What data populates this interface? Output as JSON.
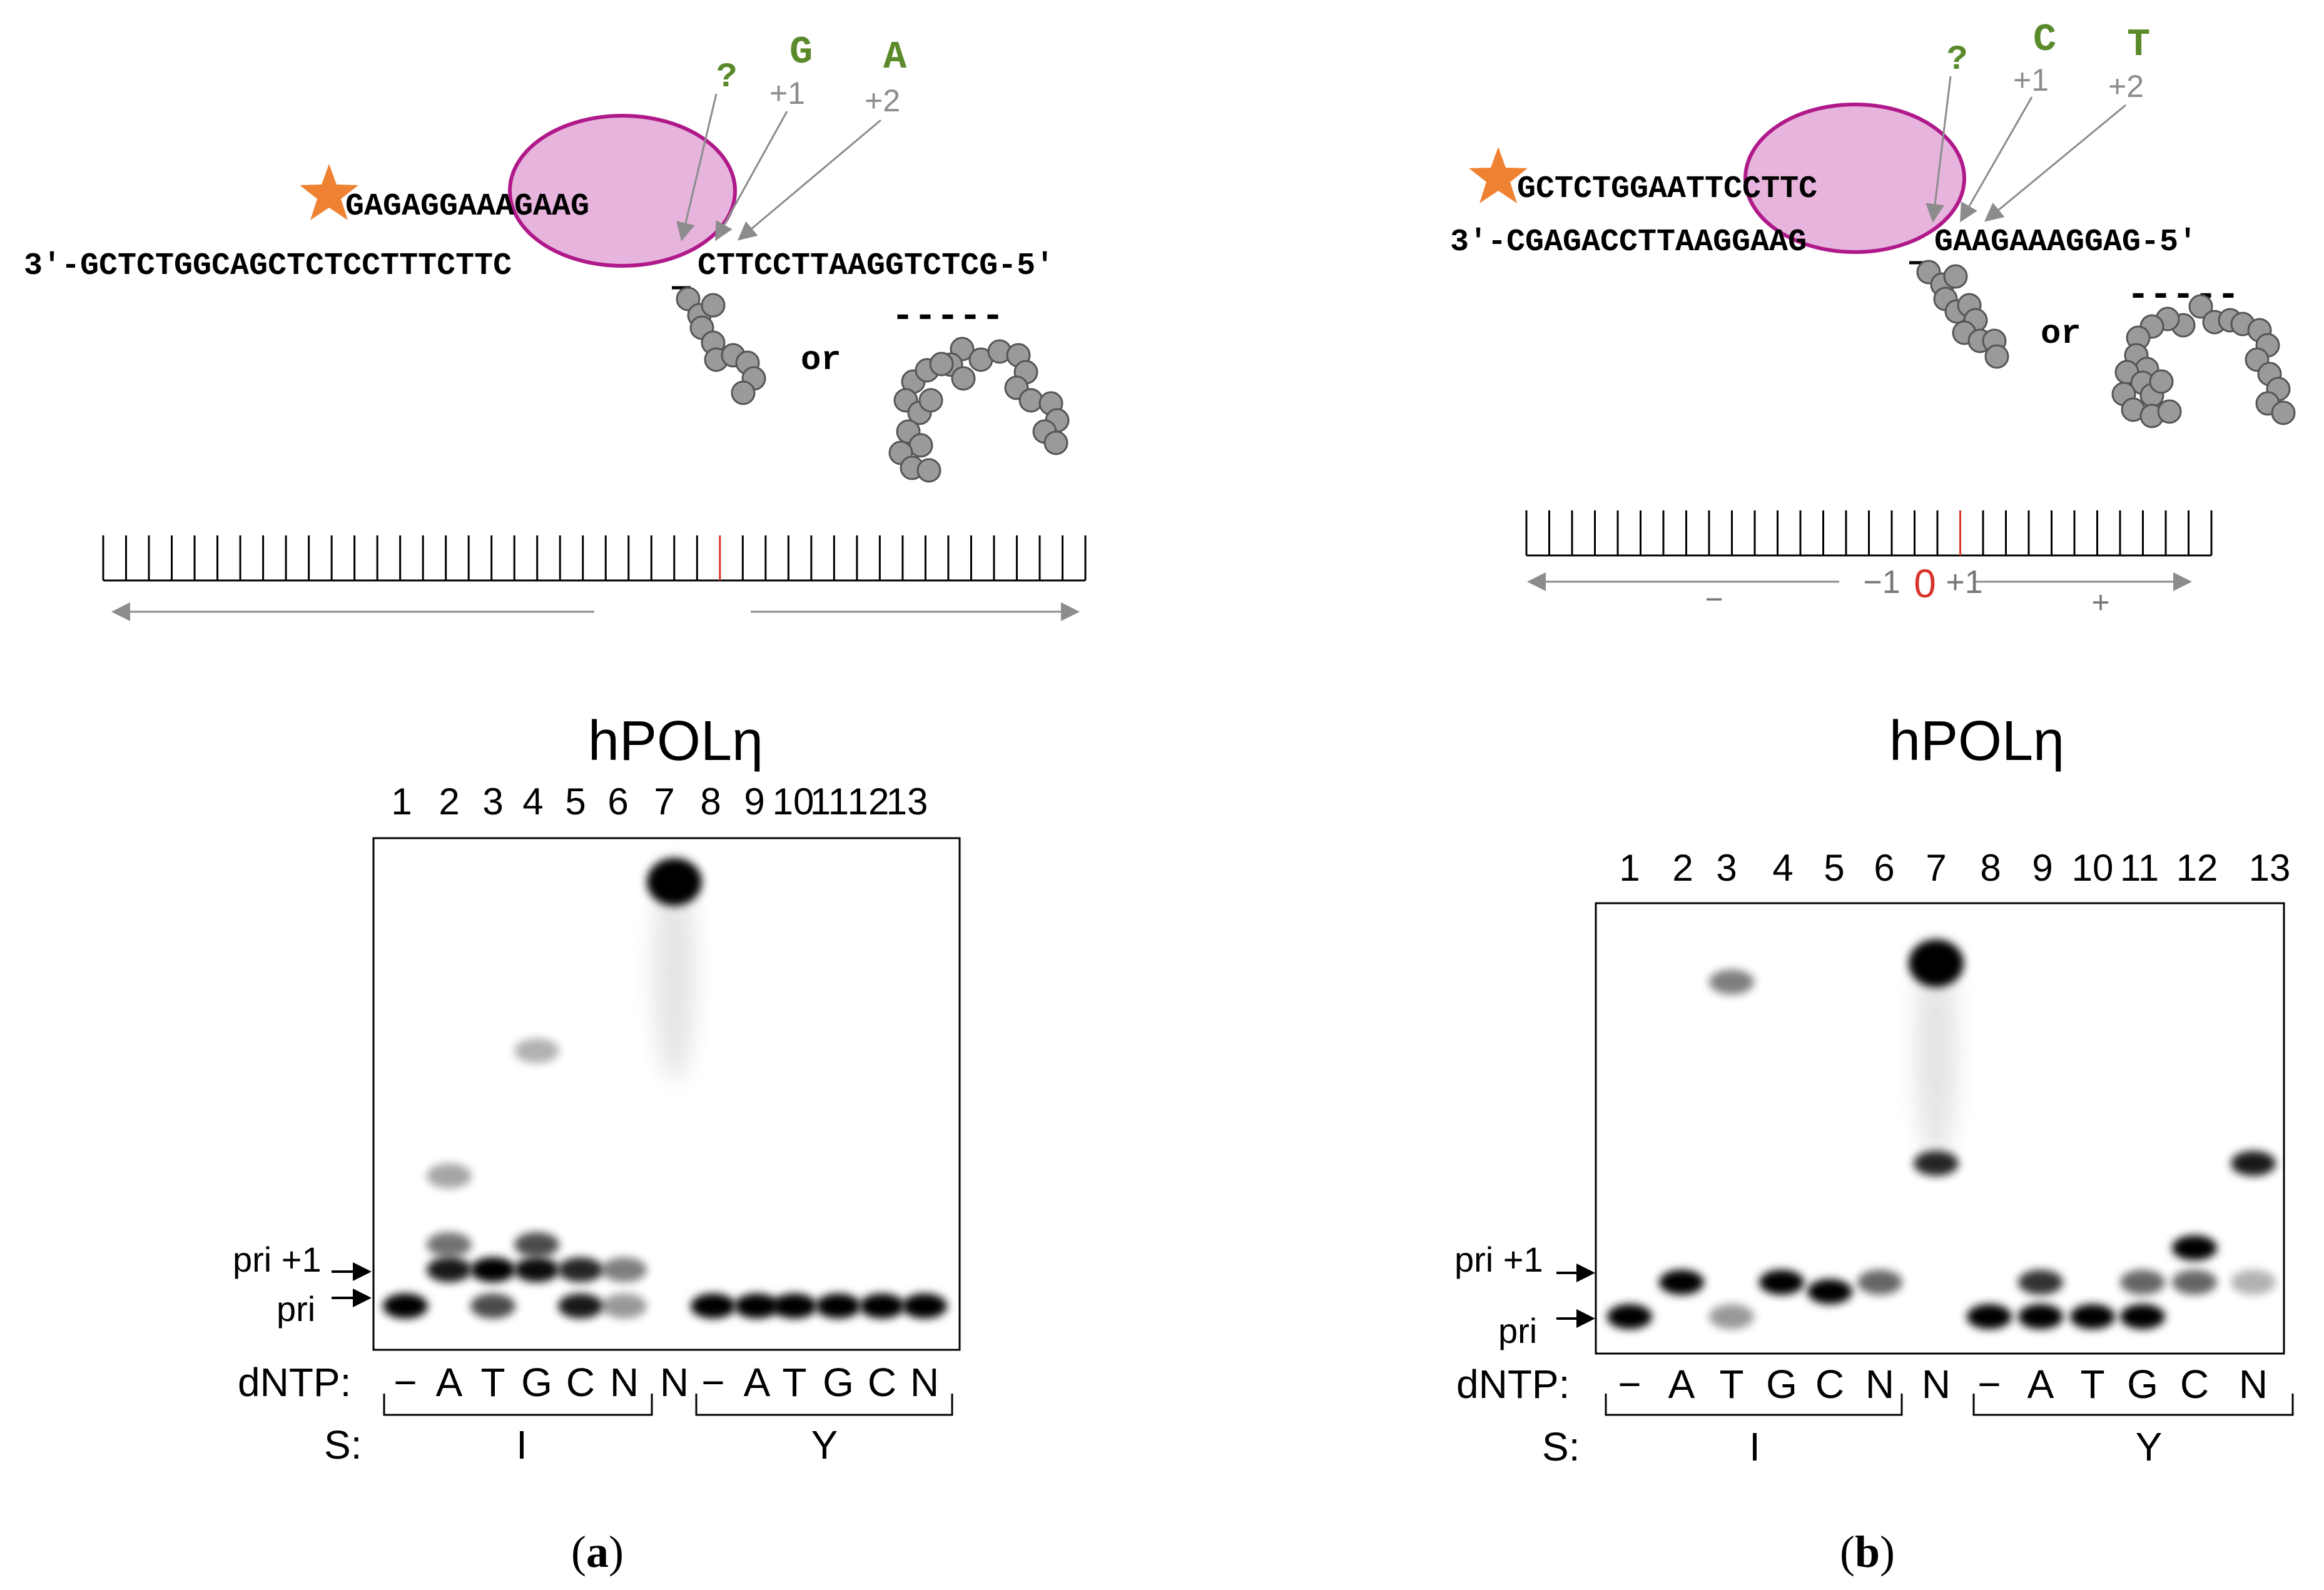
{
  "colors": {
    "accent_green": "#5a8a2a",
    "offset_gray": "#8c8c8c",
    "polymerase_fill": "#e6b4dc",
    "polymerase_stroke": "#b0198a",
    "star": "#ef8232",
    "zero_red": "#d9342b",
    "bead": "#9a9a9a",
    "band": "#000000"
  },
  "panels": [
    {
      "id": "a",
      "caption_letter": "a",
      "unknown_base": "?",
      "next_bases": [
        "G",
        "A"
      ],
      "offsets": [
        "+1",
        "+2"
      ],
      "primer": "GAGAGGAAAGAAG",
      "template_left": "3′-GCTCTGGCAGCTCTCCTTTCTTC",
      "template_right": "CTTCCTTAAGGTCTCG-5′",
      "or_label": "or",
      "gel_title": "hPOLη",
      "lane_numbers": [
        "1",
        "2",
        "3",
        "4",
        "5",
        "6",
        "7",
        "8",
        "9",
        "10",
        "11",
        "12",
        "13"
      ],
      "dntp_label": "dNTP:",
      "dntp_values": [
        "−",
        "A",
        "T",
        "G",
        "C",
        "N",
        "N",
        "−",
        "A",
        "T",
        "G",
        "C",
        "N"
      ],
      "s_label": "S:",
      "s_groups": [
        "I",
        "Y"
      ],
      "band_labels": [
        "pri +1",
        "pri"
      ],
      "bands": [
        {
          "lane": 1,
          "row": "pri",
          "i": 1.0
        },
        {
          "lane": 2,
          "row": "pri+1",
          "i": 0.9
        },
        {
          "lane": 2,
          "row": "upper",
          "i": 0.55
        },
        {
          "lane": 2,
          "row": "upper2",
          "i": 0.35
        },
        {
          "lane": 3,
          "row": "pri+1",
          "i": 1.0
        },
        {
          "lane": 3,
          "row": "pri",
          "i": 0.7
        },
        {
          "lane": 4,
          "row": "pri+1",
          "i": 0.95
        },
        {
          "lane": 4,
          "row": "upper",
          "i": 0.7
        },
        {
          "lane": 4,
          "row": "upper3",
          "i": 0.3
        },
        {
          "lane": 5,
          "row": "pri+1",
          "i": 0.85
        },
        {
          "lane": 5,
          "row": "pri",
          "i": 0.9
        },
        {
          "lane": 6,
          "row": "pri+1",
          "i": 0.5
        },
        {
          "lane": 6,
          "row": "pri",
          "i": 0.4
        },
        {
          "lane": 7,
          "row": "full",
          "i": 1.0
        },
        {
          "lane": 8,
          "row": "pri",
          "i": 1.0
        },
        {
          "lane": 9,
          "row": "pri",
          "i": 1.0
        },
        {
          "lane": 10,
          "row": "pri",
          "i": 1.0
        },
        {
          "lane": 11,
          "row": "pri",
          "i": 1.0
        },
        {
          "lane": 12,
          "row": "pri",
          "i": 1.0
        },
        {
          "lane": 13,
          "row": "pri",
          "i": 1.0
        }
      ]
    },
    {
      "id": "b",
      "caption_letter": "b",
      "unknown_base": "?",
      "next_bases": [
        "C",
        "T"
      ],
      "offsets": [
        "+1",
        "+2"
      ],
      "primer": "GCTCTGGAATTCCTTC",
      "template_left": "3′-CGAGACCTTAAGGAAG",
      "template_right": "GAAGAAAGGAG-5′",
      "or_label": "or",
      "ruler_labels": {
        "minus": "−",
        "left": "−1",
        "zero": "0",
        "right": "+1",
        "plus": "+"
      },
      "gel_title": "hPOLη",
      "lane_numbers": [
        "1",
        "2",
        "3",
        "4",
        "5",
        "6",
        "7",
        "8",
        "9",
        "10",
        "11",
        "12",
        "13"
      ],
      "dntp_label": "dNTP:",
      "dntp_values": [
        "−",
        "A",
        "T",
        "G",
        "C",
        "N",
        "N",
        "−",
        "A",
        "T",
        "G",
        "C",
        "N"
      ],
      "s_label": "S:",
      "s_groups": [
        "I",
        "Y"
      ],
      "band_labels": [
        "pri +1",
        "pri"
      ],
      "bands": [
        {
          "lane": 1,
          "row": "pri",
          "i": 1.0
        },
        {
          "lane": 2,
          "row": "pri+1",
          "i": 1.0
        },
        {
          "lane": 3,
          "row": "pri",
          "i": 0.4
        },
        {
          "lane": 3,
          "row": "upper3",
          "i": 0.5
        },
        {
          "lane": 4,
          "row": "pri+1",
          "i": 1.0
        },
        {
          "lane": 5,
          "row": "mid",
          "i": 1.0
        },
        {
          "lane": 6,
          "row": "pri+1",
          "i": 0.6
        },
        {
          "lane": 7,
          "row": "full",
          "i": 1.0
        },
        {
          "lane": 7,
          "row": "upper2",
          "i": 0.85
        },
        {
          "lane": 8,
          "row": "pri",
          "i": 1.0
        },
        {
          "lane": 9,
          "row": "pri",
          "i": 1.0
        },
        {
          "lane": 9,
          "row": "pri+1",
          "i": 0.8
        },
        {
          "lane": 10,
          "row": "pri",
          "i": 1.0
        },
        {
          "lane": 11,
          "row": "pri",
          "i": 1.0
        },
        {
          "lane": 11,
          "row": "pri+1",
          "i": 0.6
        },
        {
          "lane": 12,
          "row": "top1",
          "i": 1.0
        },
        {
          "lane": 12,
          "row": "pri+1",
          "i": 0.6
        },
        {
          "lane": 13,
          "row": "upper2",
          "i": 0.9
        },
        {
          "lane": 13,
          "row": "pri+1",
          "i": 0.3
        }
      ]
    }
  ]
}
